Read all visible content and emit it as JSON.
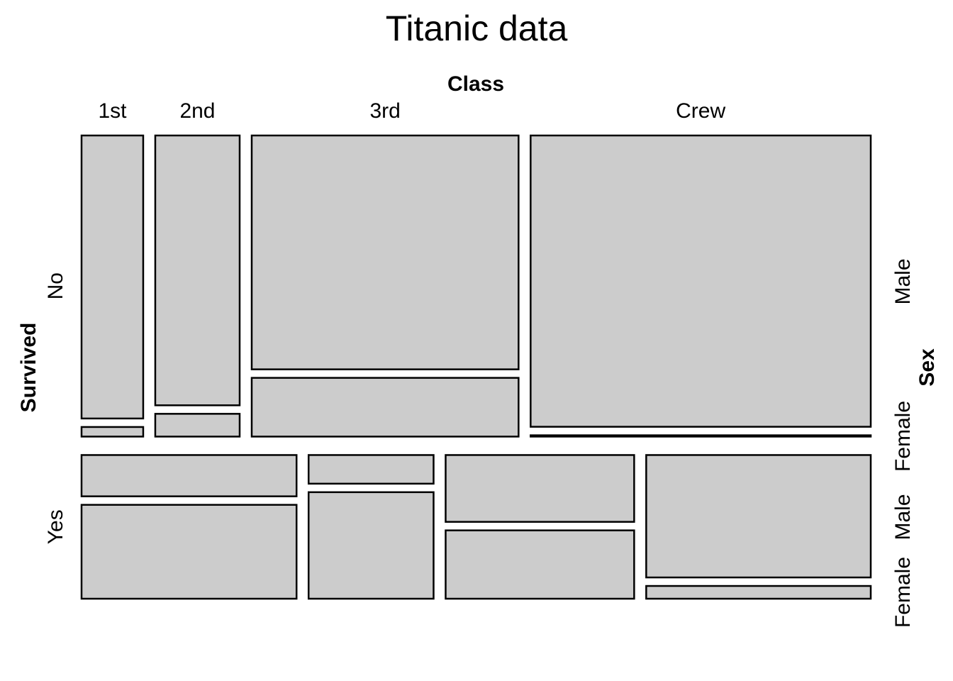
{
  "chart_data": {
    "type": "mosaic",
    "title": "Titanic data",
    "variables": {
      "x": "Class",
      "y": "Survived",
      "split": "Sex"
    },
    "x_labels": [
      "1st",
      "2nd",
      "3rd",
      "Crew"
    ],
    "y_labels": [
      "No",
      "Yes"
    ],
    "split_labels_no": [
      "Male",
      "Female"
    ],
    "split_labels_yes": [
      "Female",
      "Male",
      "Female"
    ],
    "fill_color": "#cccccc",
    "counts": {
      "No": {
        "1st": {
          "Male": 118,
          "Female": 4
        },
        "2nd": {
          "Male": 154,
          "Female": 13
        },
        "3rd": {
          "Male": 422,
          "Female": 106
        },
        "Crew": {
          "Male": 670,
          "Female": 3
        }
      },
      "Yes": {
        "1st": {
          "Male": 62,
          "Female": 141
        },
        "2nd": {
          "Male": 25,
          "Female": 93
        },
        "3rd": {
          "Male": 88,
          "Female": 90
        },
        "Crew": {
          "Male": 192,
          "Female": 20
        }
      }
    }
  }
}
